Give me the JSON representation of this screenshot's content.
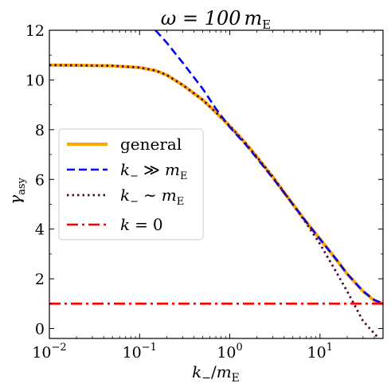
{
  "chart_data": {
    "type": "line",
    "title_main": "ω = 100",
    "title_sub_m": "m",
    "title_sub_E": "E",
    "xlabel": {
      "main": "k",
      "sub": "−",
      "slash": "/",
      "m": "m",
      "E": "E"
    },
    "ylabel": {
      "main": "γ",
      "sub": "asy"
    },
    "xscale": "log",
    "xlim": [
      0.01,
      50
    ],
    "ylim": [
      -0.4,
      12
    ],
    "yticks": [
      0,
      2,
      4,
      6,
      8,
      10,
      12
    ],
    "ytick_labels": [
      "0",
      "2",
      "4",
      "6",
      "8",
      "10",
      "12"
    ],
    "xticks": [
      0.01,
      0.1,
      1,
      10
    ],
    "xtick_labels": [
      {
        "base": "10",
        "exp": "−2"
      },
      {
        "base": "10",
        "exp": "−1"
      },
      {
        "base": "10",
        "exp": "0"
      },
      {
        "base": "10",
        "exp": "1"
      }
    ],
    "grid": false,
    "legend_position": "center-left",
    "series": [
      {
        "name": "general",
        "color": "#FFA500",
        "style": "solid",
        "x": [
          0.01,
          0.02,
          0.05,
          0.1,
          0.15,
          0.2,
          0.3,
          0.5,
          0.7,
          1,
          1.5,
          2,
          3,
          5,
          7,
          10,
          15,
          20,
          30,
          40,
          50
        ],
        "y": [
          10.6,
          10.59,
          10.57,
          10.5,
          10.38,
          10.2,
          9.8,
          9.2,
          8.7,
          8.15,
          7.45,
          6.9,
          6.1,
          5.0,
          4.3,
          3.6,
          2.8,
          2.2,
          1.5,
          1.12,
          1.0
        ]
      },
      {
        "name": "k_− ≫ m_E",
        "legend": {
          "k": "k",
          "sub": "−",
          "op": "≫",
          "m": "m",
          "E": "E"
        },
        "color": "#0000EE",
        "style": "dashed",
        "x": [
          0.15,
          0.2,
          0.3,
          0.5,
          0.7,
          1,
          1.5,
          2,
          3,
          5,
          7,
          10,
          15,
          20,
          30,
          40,
          50
        ],
        "y": [
          12.0,
          11.5,
          10.7,
          9.65,
          8.85,
          8.1,
          7.4,
          6.85,
          6.05,
          5.0,
          4.3,
          3.6,
          2.8,
          2.2,
          1.5,
          1.15,
          1.0
        ]
      },
      {
        "name": "k_− ∼ m_E",
        "legend": {
          "k": "k",
          "sub": "−",
          "op": "∼",
          "m": "m",
          "E": "E"
        },
        "color": "#4B0A3C",
        "style": "dotted",
        "x": [
          0.01,
          0.02,
          0.05,
          0.1,
          0.15,
          0.2,
          0.3,
          0.5,
          0.7,
          1,
          1.5,
          2,
          3,
          5,
          7,
          10,
          15,
          20,
          30,
          40,
          45
        ],
        "y": [
          10.6,
          10.59,
          10.57,
          10.5,
          10.38,
          10.2,
          9.8,
          9.2,
          8.7,
          8.15,
          7.45,
          6.9,
          6.1,
          5.0,
          4.25,
          3.4,
          2.3,
          1.5,
          0.3,
          -0.2,
          -0.4
        ]
      },
      {
        "name": "k = 0",
        "legend": {
          "k": "k",
          "op": "=",
          "val": "0"
        },
        "color": "#FF0000",
        "style": "dashdot",
        "x": [
          0.01,
          50
        ],
        "y": [
          1.0,
          1.0
        ]
      }
    ]
  }
}
